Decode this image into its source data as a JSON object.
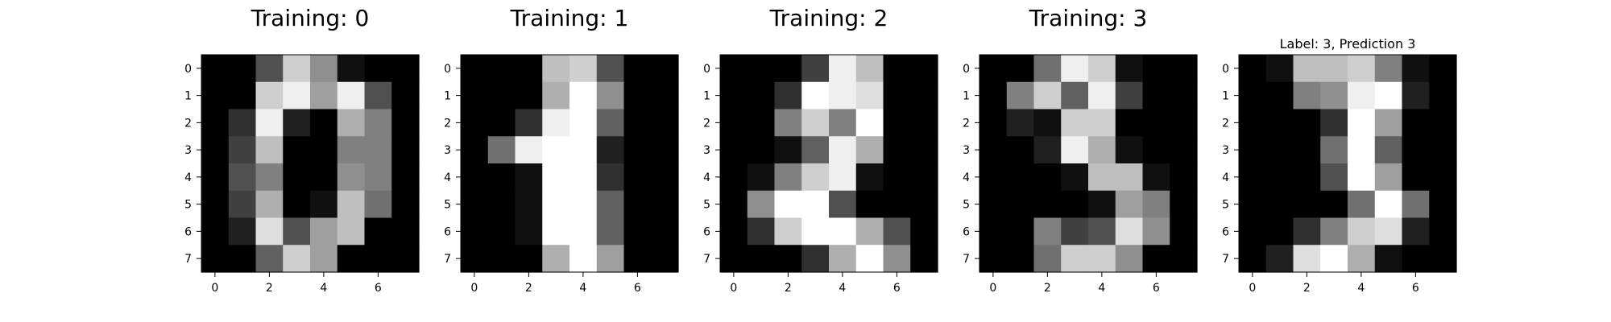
{
  "chart_data": [
    {
      "type": "heatmap",
      "title": "Training: 0",
      "colormap": "gray",
      "vmin": 0,
      "vmax": 16,
      "xticks": [
        0,
        2,
        4,
        6
      ],
      "yticks": [
        0,
        1,
        2,
        3,
        4,
        5,
        6,
        7
      ],
      "values": [
        [
          0,
          0,
          5,
          13,
          9,
          1,
          0,
          0
        ],
        [
          0,
          0,
          13,
          15,
          10,
          15,
          5,
          0
        ],
        [
          0,
          3,
          15,
          2,
          0,
          11,
          8,
          0
        ],
        [
          0,
          4,
          12,
          0,
          0,
          8,
          8,
          0
        ],
        [
          0,
          5,
          8,
          0,
          0,
          9,
          8,
          0
        ],
        [
          0,
          4,
          11,
          0,
          1,
          12,
          7,
          0
        ],
        [
          0,
          2,
          14,
          5,
          10,
          12,
          0,
          0
        ],
        [
          0,
          0,
          6,
          13,
          10,
          0,
          0,
          0
        ]
      ]
    },
    {
      "type": "heatmap",
      "title": "Training: 1",
      "colormap": "gray",
      "vmin": 0,
      "vmax": 16,
      "xticks": [
        0,
        2,
        4,
        6
      ],
      "yticks": [
        0,
        1,
        2,
        3,
        4,
        5,
        6,
        7
      ],
      "values": [
        [
          0,
          0,
          0,
          12,
          13,
          5,
          0,
          0
        ],
        [
          0,
          0,
          0,
          11,
          16,
          9,
          0,
          0
        ],
        [
          0,
          0,
          3,
          15,
          16,
          6,
          0,
          0
        ],
        [
          0,
          7,
          15,
          16,
          16,
          2,
          0,
          0
        ],
        [
          0,
          0,
          1,
          16,
          16,
          3,
          0,
          0
        ],
        [
          0,
          0,
          1,
          16,
          16,
          6,
          0,
          0
        ],
        [
          0,
          0,
          1,
          16,
          16,
          6,
          0,
          0
        ],
        [
          0,
          0,
          0,
          11,
          16,
          10,
          0,
          0
        ]
      ]
    },
    {
      "type": "heatmap",
      "title": "Training: 2",
      "colormap": "gray",
      "vmin": 0,
      "vmax": 16,
      "xticks": [
        0,
        2,
        4,
        6
      ],
      "yticks": [
        0,
        1,
        2,
        3,
        4,
        5,
        6,
        7
      ],
      "values": [
        [
          0,
          0,
          0,
          4,
          15,
          12,
          0,
          0
        ],
        [
          0,
          0,
          3,
          16,
          15,
          14,
          0,
          0
        ],
        [
          0,
          0,
          8,
          13,
          8,
          16,
          0,
          0
        ],
        [
          0,
          0,
          1,
          6,
          15,
          11,
          0,
          0
        ],
        [
          0,
          1,
          8,
          13,
          15,
          1,
          0,
          0
        ],
        [
          0,
          9,
          16,
          16,
          5,
          0,
          0,
          0
        ],
        [
          0,
          3,
          13,
          16,
          16,
          11,
          5,
          0
        ],
        [
          0,
          0,
          0,
          3,
          11,
          16,
          9,
          0
        ]
      ]
    },
    {
      "type": "heatmap",
      "title": "Training: 3",
      "colormap": "gray",
      "vmin": 0,
      "vmax": 16,
      "xticks": [
        0,
        2,
        4,
        6
      ],
      "yticks": [
        0,
        1,
        2,
        3,
        4,
        5,
        6,
        7
      ],
      "values": [
        [
          0,
          0,
          7,
          15,
          13,
          1,
          0,
          0
        ],
        [
          0,
          8,
          13,
          6,
          15,
          4,
          0,
          0
        ],
        [
          0,
          2,
          1,
          13,
          13,
          0,
          0,
          0
        ],
        [
          0,
          0,
          2,
          15,
          11,
          1,
          0,
          0
        ],
        [
          0,
          0,
          0,
          1,
          12,
          12,
          1,
          0
        ],
        [
          0,
          0,
          0,
          0,
          1,
          10,
          8,
          0
        ],
        [
          0,
          0,
          8,
          4,
          5,
          14,
          9,
          0
        ],
        [
          0,
          0,
          7,
          13,
          13,
          9,
          0,
          0
        ]
      ]
    },
    {
      "type": "heatmap",
      "title": "Label: 3, Prediction 3",
      "colormap": "gray",
      "vmin": 0,
      "vmax": 16,
      "xticks": [
        0,
        2,
        4,
        6
      ],
      "yticks": [
        0,
        1,
        2,
        3,
        4,
        5,
        6,
        7
      ],
      "values": [
        [
          0,
          1,
          12,
          12,
          13,
          8,
          1,
          0
        ],
        [
          0,
          0,
          8,
          9,
          15,
          16,
          2,
          0
        ],
        [
          0,
          0,
          0,
          3,
          16,
          10,
          0,
          0
        ],
        [
          0,
          0,
          0,
          7,
          16,
          6,
          0,
          0
        ],
        [
          0,
          0,
          0,
          5,
          16,
          10,
          0,
          0
        ],
        [
          0,
          0,
          0,
          0,
          7,
          16,
          7,
          0
        ],
        [
          0,
          0,
          3,
          8,
          13,
          14,
          2,
          0
        ],
        [
          0,
          2,
          14,
          16,
          11,
          1,
          0,
          0
        ]
      ]
    }
  ]
}
